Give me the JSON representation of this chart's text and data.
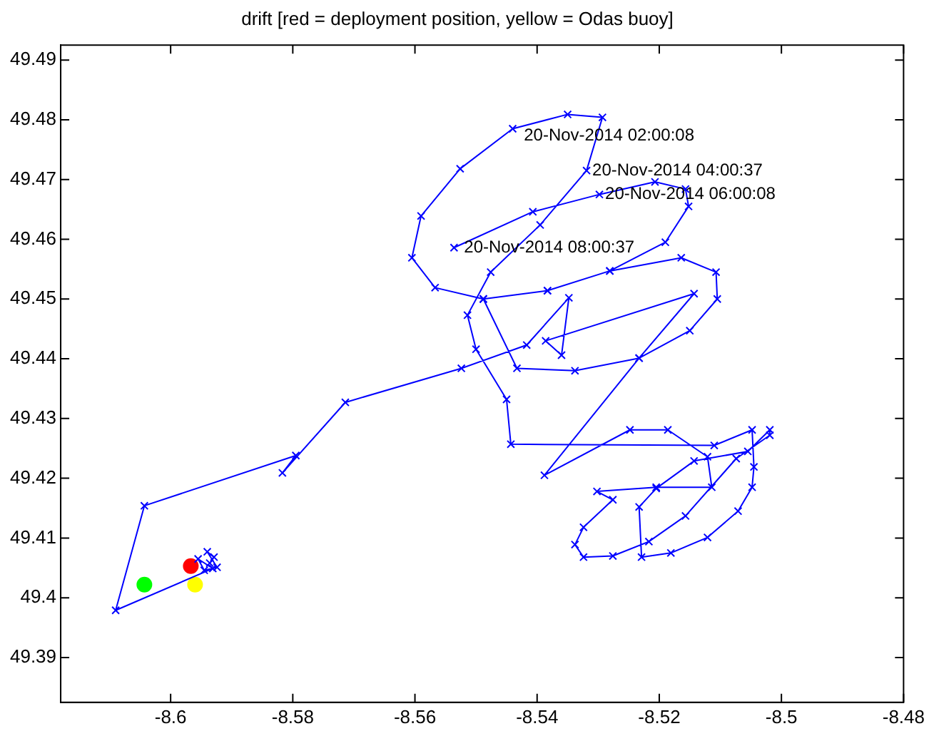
{
  "chart_data": {
    "type": "line",
    "title": "drift [red = deployment position, yellow = Odas buoy]",
    "xlim": [
      -8.618,
      -8.48
    ],
    "xticks": [
      -8.6,
      -8.58,
      -8.56,
      -8.54,
      -8.52,
      -8.5,
      -8.48
    ],
    "ylim": [
      49.3825,
      49.4925
    ],
    "yticks": [
      49.39,
      49.4,
      49.41,
      49.42,
      49.43,
      49.44,
      49.45,
      49.46,
      49.47,
      49.48,
      49.49
    ],
    "grid": false,
    "legend": false,
    "series": [
      {
        "type": "line",
        "marker": "cross",
        "color": "#0000ff",
        "x": [
          -8.5936,
          -8.5929,
          -8.594,
          -8.5924,
          -8.5945,
          -8.5955,
          -8.5931,
          -8.609,
          -8.6043,
          -8.5795,
          -8.5817,
          -8.5714,
          -8.5524,
          -8.5417,
          -8.5348,
          -8.536,
          -8.5386,
          -8.5143,
          -8.5233,
          -8.5388,
          -8.5248,
          -8.5186,
          -8.5121,
          -8.5114,
          -8.5205,
          -8.5302,
          -8.5276,
          -8.5324,
          -8.5338,
          -8.5324,
          -8.5276,
          -8.5217,
          -8.5157,
          -8.5074,
          -8.5019,
          -8.5019,
          -8.5055,
          -8.5143,
          -8.5205,
          -8.5233,
          -8.5229,
          -8.5181,
          -8.5121,
          -8.5071,
          -8.5048,
          -8.5045,
          -8.5048,
          -8.511,
          -8.5443,
          -8.545,
          -8.55,
          -8.5514,
          -8.5476,
          -8.5395,
          -8.5319,
          -8.5293,
          -8.535,
          -8.544,
          -8.5526,
          -8.559,
          -8.5605,
          -8.5567,
          -8.5488,
          -8.5383,
          -8.5281,
          -8.5164,
          -8.5107,
          -8.5105,
          -8.515,
          -8.5233,
          -8.5338,
          -8.5433,
          -8.5488,
          -8.5383,
          -8.5281,
          -8.519,
          -8.5152,
          -8.5157,
          -8.5207,
          -8.5298,
          -8.5407,
          -8.5536
        ],
        "values": [
          49.4058,
          49.4068,
          49.4077,
          49.4051,
          49.4046,
          49.4065,
          49.4049,
          49.3979,
          49.4154,
          49.4238,
          49.4209,
          49.4327,
          49.4384,
          49.4423,
          49.4502,
          49.4406,
          49.443,
          49.4509,
          49.4401,
          49.4205,
          49.4281,
          49.4281,
          49.4236,
          49.4185,
          49.4185,
          49.4178,
          49.4164,
          49.4118,
          49.4089,
          49.4068,
          49.407,
          49.4094,
          49.4137,
          49.4233,
          49.4272,
          49.4281,
          49.4245,
          49.4229,
          49.4183,
          49.4152,
          49.4068,
          49.4075,
          49.4101,
          49.4145,
          49.4185,
          49.4219,
          49.4281,
          49.4255,
          49.4257,
          49.4332,
          49.4416,
          49.4473,
          49.4545,
          49.4624,
          49.4715,
          49.4804,
          49.4809,
          49.4785,
          49.4718,
          49.4639,
          49.4569,
          49.4519,
          49.45,
          49.4514,
          49.4547,
          49.4569,
          49.4545,
          49.45,
          49.4447,
          49.4401,
          49.438,
          49.4384,
          49.45,
          49.4514,
          49.4547,
          49.4595,
          49.4655,
          49.4684,
          49.4696,
          49.4675,
          49.4646,
          49.4586
        ]
      },
      {
        "type": "scatter",
        "marker": "circle",
        "color": "#ff0000",
        "x": [
          -8.5967
        ],
        "values": [
          49.4053
        ]
      },
      {
        "type": "scatter",
        "marker": "circle",
        "color": "#00ff00",
        "x": [
          -8.6043
        ],
        "values": [
          49.4022
        ]
      },
      {
        "type": "scatter",
        "marker": "circle",
        "color": "#ffff00",
        "x": [
          -8.596
        ],
        "values": [
          49.4022
        ]
      }
    ],
    "annotations": [
      {
        "text": "20-Nov-2014 02:00:08",
        "x": -8.5431,
        "y": 49.4773
      },
      {
        "text": "20-Nov-2014 04:00:37",
        "x": -8.5319,
        "y": 49.4715
      },
      {
        "text": "20-Nov-2014 06:00:08",
        "x": -8.5298,
        "y": 49.4675
      },
      {
        "text": "20-Nov-2014 08:00:37",
        "x": -8.5529,
        "y": 49.4586
      }
    ]
  }
}
